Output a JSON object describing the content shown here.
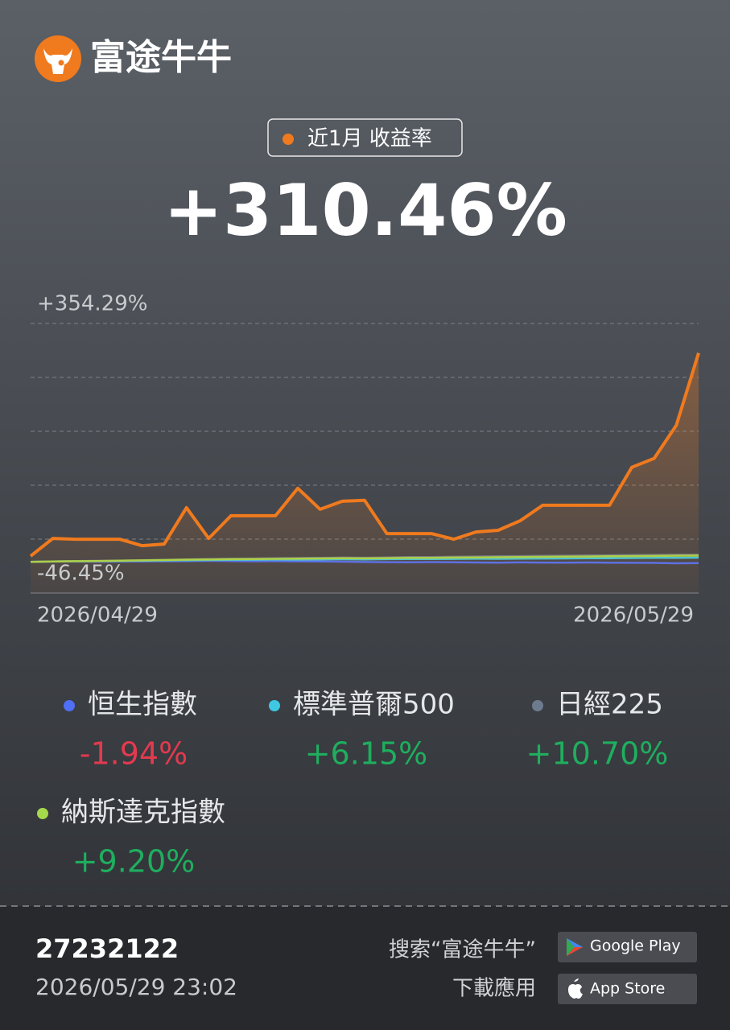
{
  "brand": "富途牛牛",
  "period_label": "近1月 收益率",
  "return_value": "+310.46%",
  "chart_data": {
    "type": "line",
    "categories": [
      "2026/04/29",
      null,
      null,
      null,
      null,
      null,
      null,
      null,
      null,
      null,
      null,
      null,
      null,
      null,
      null,
      null,
      null,
      null,
      null,
      null,
      null,
      null,
      null,
      null,
      null,
      null,
      null,
      null,
      null,
      null,
      "2026/05/29"
    ],
    "ylim": [
      -46.45,
      354.29
    ],
    "yticks": [
      {
        "value": 354.29,
        "label": "+354.29%"
      },
      {
        "value": -46.45,
        "label": "-46.45%"
      }
    ],
    "series": [
      {
        "name": "收益率",
        "color": "#f07a1e",
        "values": [
          8.4,
          34.8,
          33.6,
          33.6,
          33.6,
          24.0,
          26.4,
          80.5,
          34.8,
          68.5,
          68.5,
          68.5,
          109.3,
          78.1,
          90.1,
          91.3,
          42.0,
          42.0,
          42.0,
          33.6,
          44.4,
          46.8,
          61.3,
          84.1,
          84.1,
          84.1,
          84.1,
          140.5,
          153.7,
          203.0,
          310.46
        ]
      },
      {
        "name": "恒生指數",
        "color": "#4f6ff5",
        "return": "-1.94%",
        "return_color": "#e23a4e",
        "values": [
          0,
          0.3,
          0.5,
          0.2,
          0.4,
          0.6,
          0.8,
          1.2,
          1.5,
          1.0,
          0.8,
          0.9,
          0.7,
          0.5,
          0.2,
          -0.3,
          -0.5,
          -0.6,
          -0.4,
          -0.8,
          -1.0,
          -1.2,
          -0.9,
          -1.1,
          -1.3,
          -1.0,
          -1.2,
          -1.5,
          -1.6,
          -2.2,
          -1.94
        ]
      },
      {
        "name": "標準普爾500",
        "color": "#3fc8e2",
        "return": "+6.15%",
        "return_color": "#1fae5e",
        "values": [
          0,
          0.4,
          0.8,
          1.0,
          1.3,
          1.6,
          2.0,
          2.4,
          2.6,
          2.9,
          3.1,
          3.3,
          3.2,
          3.5,
          3.8,
          3.6,
          3.9,
          4.1,
          4.0,
          4.3,
          4.5,
          4.4,
          4.7,
          4.9,
          5.0,
          5.2,
          5.4,
          5.6,
          5.8,
          6.0,
          6.15
        ]
      },
      {
        "name": "日經225",
        "color": "#6e7b8f",
        "return": "+10.70%",
        "return_color": "#1fae5e",
        "values": [
          0,
          0.6,
          1.0,
          1.5,
          1.8,
          2.3,
          2.9,
          3.6,
          4.1,
          4.5,
          4.9,
          5.2,
          5.6,
          5.9,
          6.3,
          6.1,
          6.6,
          7.0,
          7.2,
          7.5,
          7.9,
          8.2,
          8.4,
          8.8,
          9.1,
          9.4,
          9.7,
          10.0,
          10.2,
          10.5,
          10.7
        ]
      },
      {
        "name": "納斯達克指數",
        "color": "#a5d84b",
        "return": "+9.20%",
        "return_color": "#1fae5e",
        "values": [
          0,
          0.5,
          0.9,
          1.2,
          1.6,
          2.1,
          2.6,
          3.2,
          3.5,
          3.9,
          4.2,
          4.4,
          4.6,
          5.0,
          5.3,
          5.1,
          5.5,
          5.8,
          6.0,
          6.3,
          6.6,
          6.8,
          7.1,
          7.4,
          7.6,
          7.9,
          8.2,
          8.5,
          8.7,
          9.0,
          9.2
        ]
      }
    ]
  },
  "footer": {
    "account": "27232122",
    "timestamp": "2026/05/29 23:02",
    "search_hint": "搜索“富途牛牛”",
    "download_hint": "下載應用",
    "google_play": "Google Play",
    "app_store": "App Store"
  }
}
